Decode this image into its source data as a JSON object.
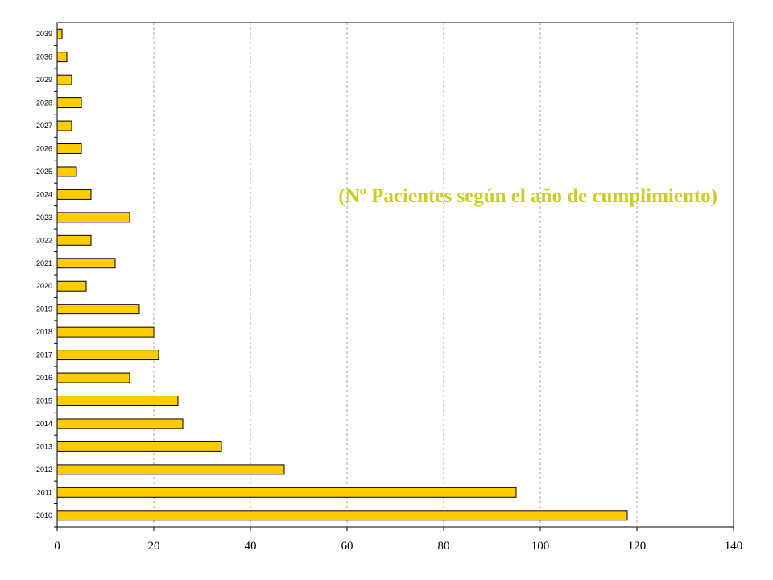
{
  "chart_data": {
    "type": "bar",
    "orientation": "horizontal",
    "categories": [
      "2010",
      "2011",
      "2012",
      "2013",
      "2014",
      "2015",
      "2016",
      "2017",
      "2018",
      "2019",
      "2020",
      "2021",
      "2022",
      "2023",
      "2024",
      "2025",
      "2026",
      "2027",
      "2028",
      "2029",
      "2036",
      "2039"
    ],
    "values": [
      118,
      95,
      47,
      34,
      26,
      25,
      15,
      21,
      20,
      17,
      6,
      12,
      7,
      15,
      7,
      4,
      5,
      3,
      5,
      3,
      2,
      1
    ],
    "xlim": [
      0,
      140
    ],
    "x_ticks": [
      0,
      20,
      40,
      60,
      80,
      100,
      120,
      140
    ],
    "annotation": "(Nº Pacientes según el año de cumplimiento)",
    "grid": "vertical-dashed",
    "colors": {
      "bar": "#ffcc00",
      "bar_outline": "#000000",
      "grid": "#a6a6a6",
      "annotation": "#cccc22"
    }
  }
}
